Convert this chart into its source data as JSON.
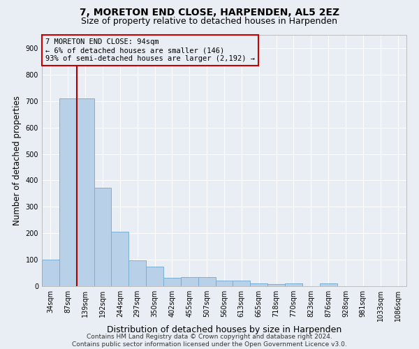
{
  "title": "7, MORETON END CLOSE, HARPENDEN, AL5 2EZ",
  "subtitle": "Size of property relative to detached houses in Harpenden",
  "xlabel": "Distribution of detached houses by size in Harpenden",
  "ylabel": "Number of detached properties",
  "categories": [
    "34sqm",
    "87sqm",
    "139sqm",
    "192sqm",
    "244sqm",
    "297sqm",
    "350sqm",
    "402sqm",
    "455sqm",
    "507sqm",
    "560sqm",
    "613sqm",
    "665sqm",
    "718sqm",
    "770sqm",
    "823sqm",
    "876sqm",
    "928sqm",
    "981sqm",
    "1033sqm",
    "1086sqm"
  ],
  "values": [
    100,
    710,
    710,
    373,
    205,
    98,
    73,
    32,
    33,
    33,
    20,
    20,
    10,
    8,
    10,
    0,
    10,
    0,
    0,
    0,
    0
  ],
  "bar_color": "#b8d0e8",
  "bar_edge_color": "#7aafd4",
  "vline_x": 1.5,
  "vline_color": "#aa0000",
  "annotation_lines": [
    "7 MORETON END CLOSE: 94sqm",
    "← 6% of detached houses are smaller (146)",
    "93% of semi-detached houses are larger (2,192) →"
  ],
  "annotation_box_edge_color": "#cc0000",
  "ylim": [
    0,
    950
  ],
  "yticks": [
    0,
    100,
    200,
    300,
    400,
    500,
    600,
    700,
    800,
    900
  ],
  "footer1": "Contains HM Land Registry data © Crown copyright and database right 2024.",
  "footer2": "Contains public sector information licensed under the Open Government Licence v3.0.",
  "background_color": "#e8eef4",
  "grid_color": "#ffffff",
  "title_fontsize": 10,
  "subtitle_fontsize": 9,
  "ylabel_fontsize": 8.5,
  "xlabel_fontsize": 9,
  "tick_fontsize": 7,
  "annotation_fontsize": 7.5,
  "footer_fontsize": 6.5
}
